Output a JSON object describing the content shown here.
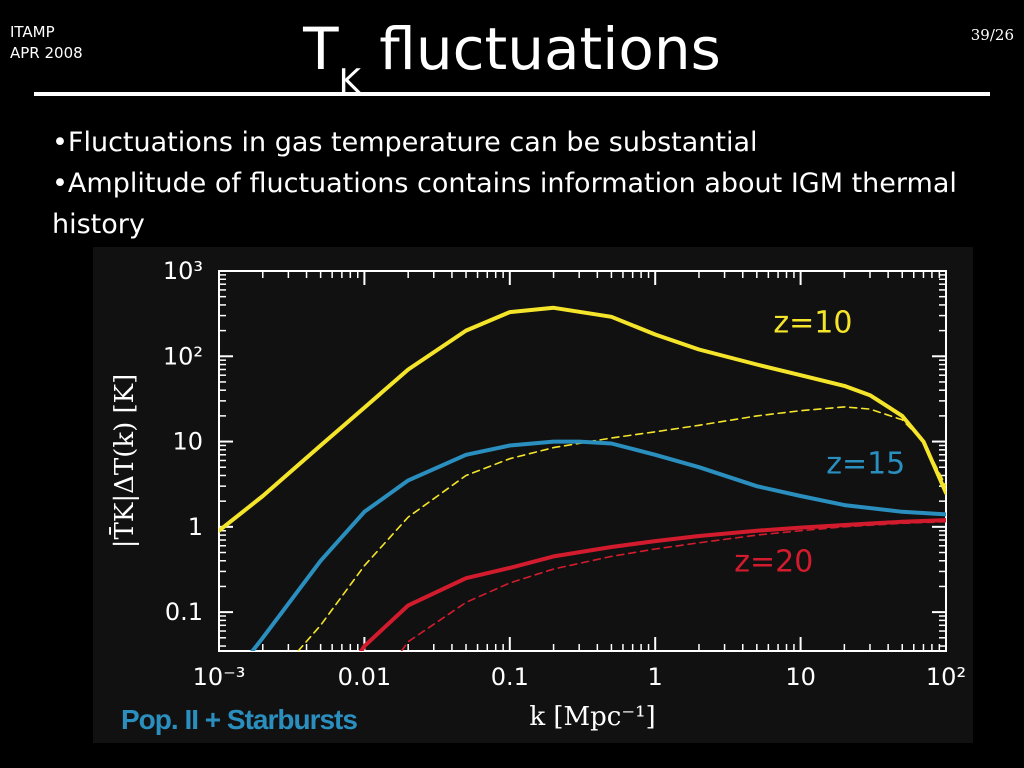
{
  "header": {
    "event": "ITAMP",
    "date": "APR 2008",
    "slide_number": "39/26",
    "title_main": "T",
    "title_sub": "K",
    "title_rest": " fluctuations"
  },
  "bullets": [
    "•Fluctuations in gas temperature can be substantial",
    "•Amplitude of fluctuations contains information about IGM thermal history"
  ],
  "colors": {
    "z10": "#f5e52a",
    "z15": "#2a8fbf",
    "z20": "#d21c2e",
    "footer": "#2a8fbf"
  },
  "chart_data": {
    "type": "line",
    "xscale": "log",
    "yscale": "log",
    "xlim": [
      0.001,
      100
    ],
    "ylim": [
      0.035,
      1000
    ],
    "xlabel": "k [Mpc⁻¹]",
    "ylabel": "|T̄K|ΔT(k) [K]",
    "x_ticks": [
      {
        "value": 0.001,
        "label": "10⁻³"
      },
      {
        "value": 0.01,
        "label": "0.01"
      },
      {
        "value": 0.1,
        "label": "0.1"
      },
      {
        "value": 1,
        "label": "1"
      },
      {
        "value": 10,
        "label": "10"
      },
      {
        "value": 100,
        "label": "10²"
      }
    ],
    "y_ticks": [
      {
        "value": 0.1,
        "label": "0.1"
      },
      {
        "value": 1,
        "label": "1"
      },
      {
        "value": 10,
        "label": "10"
      },
      {
        "value": 100,
        "label": "10²"
      },
      {
        "value": 1000,
        "label": "10³"
      }
    ],
    "footer_label": "Pop. II + Starbursts",
    "series": [
      {
        "name": "z=10",
        "color": "#f5e52a",
        "style": "solid",
        "x": [
          0.001,
          0.002,
          0.005,
          0.01,
          0.02,
          0.05,
          0.1,
          0.2,
          0.5,
          1,
          2,
          5,
          10,
          20,
          30,
          50,
          70,
          100
        ],
        "y": [
          0.9,
          2.3,
          9,
          25,
          70,
          200,
          330,
          370,
          290,
          180,
          120,
          80,
          60,
          45,
          35,
          20,
          10,
          2.5
        ]
      },
      {
        "name": "z=10",
        "color": "#f5e52a",
        "style": "dashed",
        "x": [
          0.0035,
          0.005,
          0.01,
          0.02,
          0.05,
          0.1,
          0.2,
          0.5,
          1,
          2,
          5,
          10,
          20,
          30,
          50,
          70,
          100
        ],
        "y": [
          0.035,
          0.07,
          0.35,
          1.3,
          4,
          6.3,
          8.5,
          11,
          13,
          15.5,
          20,
          23,
          25.5,
          24,
          18,
          10,
          3
        ]
      },
      {
        "name": "z=15",
        "color": "#2a8fbf",
        "style": "solid",
        "x": [
          0.0017,
          0.002,
          0.005,
          0.01,
          0.02,
          0.05,
          0.1,
          0.2,
          0.3,
          0.5,
          1,
          2,
          5,
          10,
          20,
          50,
          100
        ],
        "y": [
          0.035,
          0.05,
          0.4,
          1.5,
          3.5,
          7,
          9,
          10,
          10,
          9.5,
          7,
          5,
          3,
          2.3,
          1.8,
          1.5,
          1.4
        ]
      },
      {
        "name": "z=20",
        "color": "#d21c2e",
        "style": "solid",
        "x": [
          0.0095,
          0.01,
          0.02,
          0.05,
          0.1,
          0.2,
          0.5,
          1,
          2,
          5,
          10,
          20,
          50,
          100
        ],
        "y": [
          0.035,
          0.04,
          0.12,
          0.25,
          0.33,
          0.45,
          0.58,
          0.68,
          0.78,
          0.9,
          0.98,
          1.05,
          1.15,
          1.2
        ]
      },
      {
        "name": "z=20",
        "color": "#d21c2e",
        "style": "dashed",
        "x": [
          0.018,
          0.02,
          0.05,
          0.1,
          0.2,
          0.5,
          1,
          2,
          5,
          10,
          20,
          50,
          100
        ],
        "y": [
          0.035,
          0.045,
          0.13,
          0.22,
          0.32,
          0.45,
          0.55,
          0.65,
          0.8,
          0.9,
          1,
          1.1,
          1.15
        ]
      }
    ],
    "annotations": [
      {
        "text": "z=10",
        "color": "#f5e52a",
        "x": 6.5,
        "y": 190
      },
      {
        "text": "z=15",
        "color": "#2a8fbf",
        "x": 15,
        "y": 4.2
      },
      {
        "text": "z=20",
        "color": "#d21c2e",
        "x": 3.5,
        "y": 0.3
      }
    ]
  }
}
